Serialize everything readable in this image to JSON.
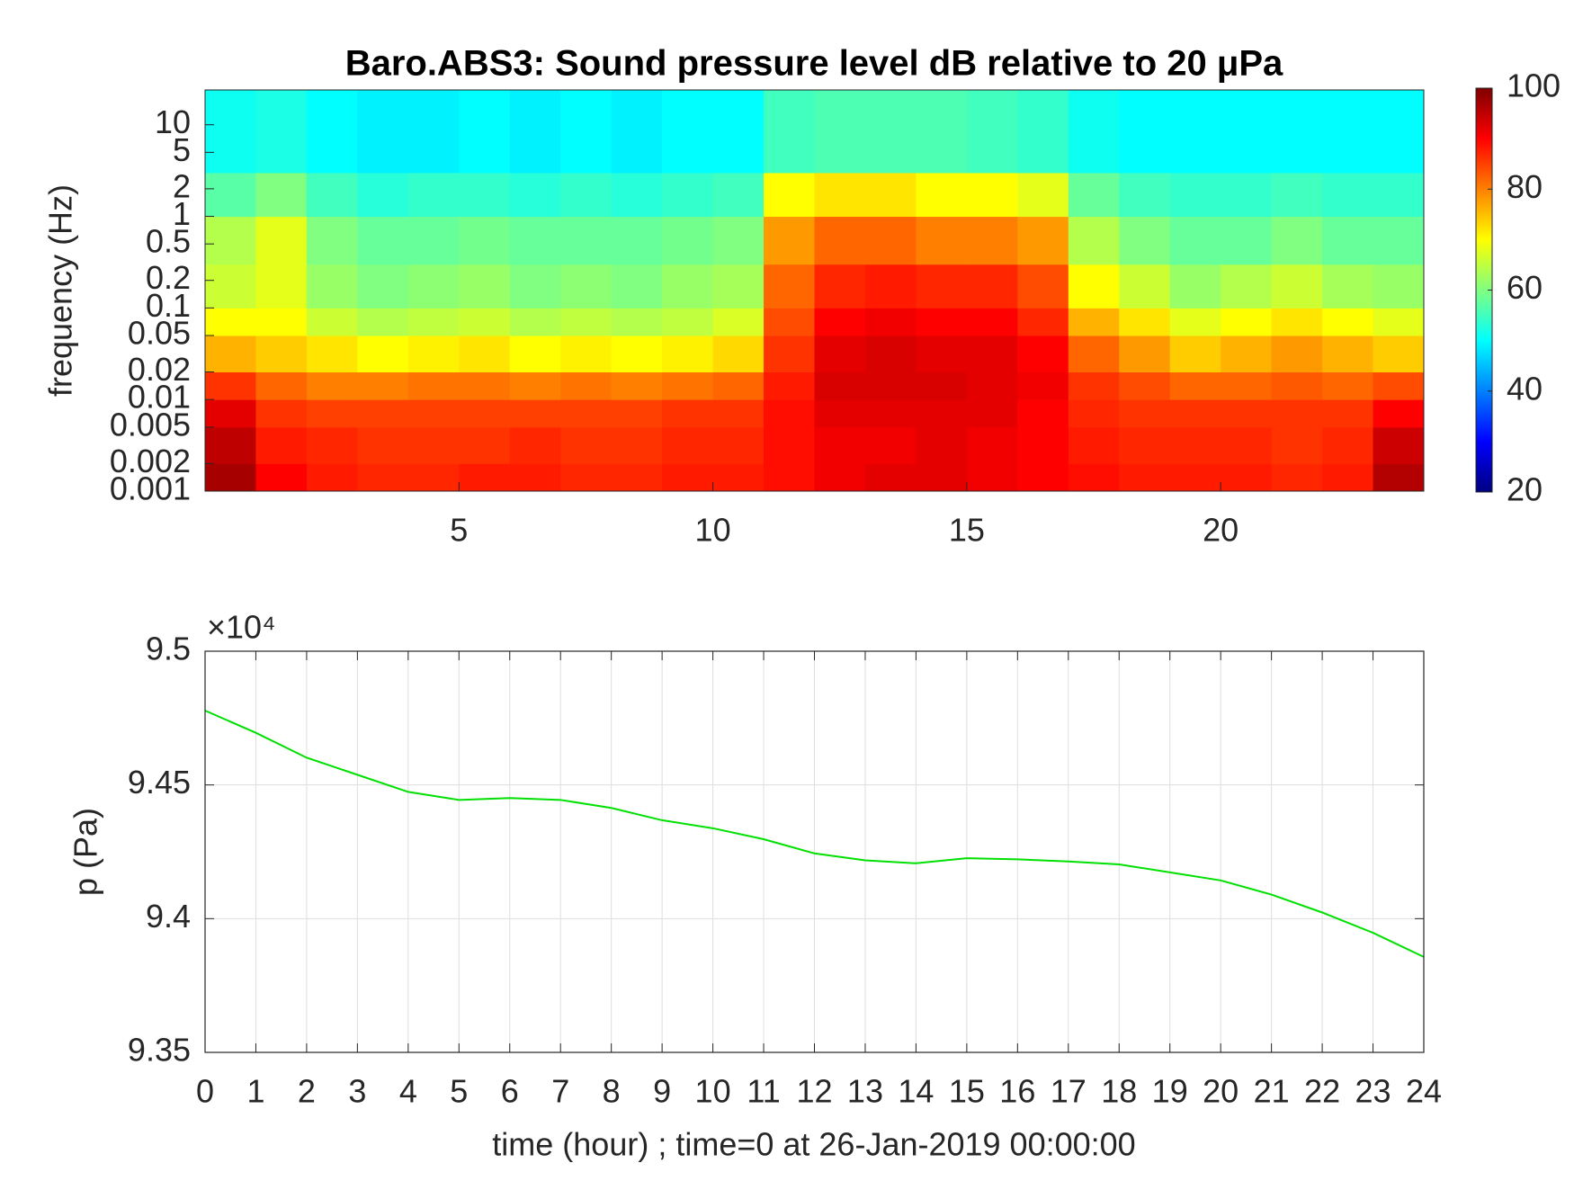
{
  "chart_data": [
    {
      "type": "heatmap",
      "title": "Baro.ABS3: Sound pressure level dB relative to 20 μPa",
      "ylabel": "frequency (Hz)",
      "xlim": [
        0,
        24
      ],
      "xticks": [
        5,
        10,
        15,
        20
      ],
      "ylim": [
        0.001,
        24
      ],
      "log_y": true,
      "yticks": [
        0.001,
        0.002,
        0.005,
        0.01,
        0.02,
        0.05,
        0.1,
        0.2,
        0.5,
        1,
        2,
        5,
        10
      ],
      "colormap": "jet",
      "clim": [
        20,
        100
      ],
      "cticks": [
        20,
        40,
        60,
        80,
        100
      ],
      "xbins": [
        0,
        1,
        2,
        3,
        4,
        5,
        6,
        7,
        8,
        9,
        10,
        11,
        12,
        13,
        14,
        15,
        16,
        17,
        18,
        19,
        20,
        21,
        22,
        23,
        24
      ],
      "ybins": [
        0.001,
        0.002,
        0.005,
        0.01,
        0.02,
        0.05,
        0.1,
        0.3,
        1,
        3,
        24
      ],
      "z": [
        [
          97,
          90,
          88,
          87,
          87,
          88,
          88,
          87,
          87,
          88,
          88,
          89,
          91,
          92,
          92,
          91,
          90,
          89,
          88,
          88,
          88,
          87,
          88,
          96
        ],
        [
          95,
          88,
          87,
          86,
          86,
          86,
          87,
          86,
          86,
          87,
          87,
          89,
          91,
          91,
          92,
          91,
          90,
          88,
          87,
          87,
          87,
          86,
          87,
          94
        ],
        [
          92,
          86,
          85,
          85,
          85,
          85,
          85,
          85,
          85,
          86,
          86,
          89,
          92,
          92,
          92,
          92,
          90,
          87,
          86,
          86,
          86,
          86,
          86,
          90
        ],
        [
          86,
          82,
          80,
          80,
          81,
          81,
          80,
          81,
          80,
          81,
          82,
          88,
          93,
          93,
          93,
          92,
          91,
          86,
          84,
          82,
          82,
          83,
          82,
          84
        ],
        [
          76,
          74,
          72,
          70,
          71,
          72,
          70,
          71,
          70,
          71,
          73,
          86,
          92,
          93,
          92,
          92,
          90,
          82,
          78,
          74,
          76,
          78,
          76,
          74
        ],
        [
          70,
          70,
          66,
          64,
          65,
          66,
          64,
          65,
          64,
          65,
          67,
          84,
          90,
          91,
          90,
          90,
          87,
          76,
          72,
          68,
          70,
          72,
          70,
          68
        ],
        [
          66,
          68,
          62,
          60,
          61,
          62,
          60,
          61,
          60,
          62,
          63,
          82,
          87,
          88,
          87,
          87,
          84,
          70,
          66,
          62,
          64,
          66,
          63,
          62
        ],
        [
          64,
          68,
          60,
          58,
          58,
          59,
          58,
          58,
          58,
          59,
          60,
          78,
          82,
          82,
          80,
          80,
          78,
          64,
          60,
          58,
          58,
          60,
          58,
          58
        ],
        [
          57,
          60,
          55,
          53,
          54,
          54,
          53,
          54,
          53,
          54,
          55,
          70,
          72,
          72,
          70,
          70,
          68,
          58,
          55,
          54,
          54,
          55,
          54,
          54
        ],
        [
          51,
          52,
          50,
          49,
          49,
          50,
          49,
          50,
          49,
          50,
          50,
          55,
          56,
          56,
          56,
          55,
          54,
          51,
          50,
          50,
          50,
          50,
          50,
          50
        ]
      ]
    },
    {
      "type": "line",
      "xlabel": "time (hour) ; time=0 at 26-Jan-2019 00:00:00",
      "ylabel": "p (Pa)",
      "y_multiplier": "×10⁴",
      "xlim": [
        0,
        24
      ],
      "xticks": [
        0,
        1,
        2,
        3,
        4,
        5,
        6,
        7,
        8,
        9,
        10,
        11,
        12,
        13,
        14,
        15,
        16,
        17,
        18,
        19,
        20,
        21,
        22,
        23,
        24
      ],
      "ylim": [
        9.35,
        9.5
      ],
      "yticks": [
        9.35,
        9.4,
        9.45,
        9.5
      ],
      "grid": true,
      "x": [
        0,
        1,
        2,
        3,
        4,
        5,
        6,
        7,
        8,
        9,
        10,
        11,
        12,
        13,
        14,
        15,
        16,
        17,
        18,
        19,
        20,
        21,
        22,
        23,
        24
      ],
      "series": [
        {
          "color": "#00e000",
          "values": [
            9.4778,
            9.4695,
            9.4602,
            9.4538,
            9.4474,
            9.4444,
            9.4451,
            9.4444,
            9.4414,
            9.4368,
            9.4338,
            9.4297,
            9.4244,
            9.4218,
            9.4207,
            9.4226,
            9.4222,
            9.4214,
            9.4203,
            9.4173,
            9.4143,
            9.409,
            9.4023,
            9.3947,
            9.3857
          ]
        }
      ]
    }
  ]
}
